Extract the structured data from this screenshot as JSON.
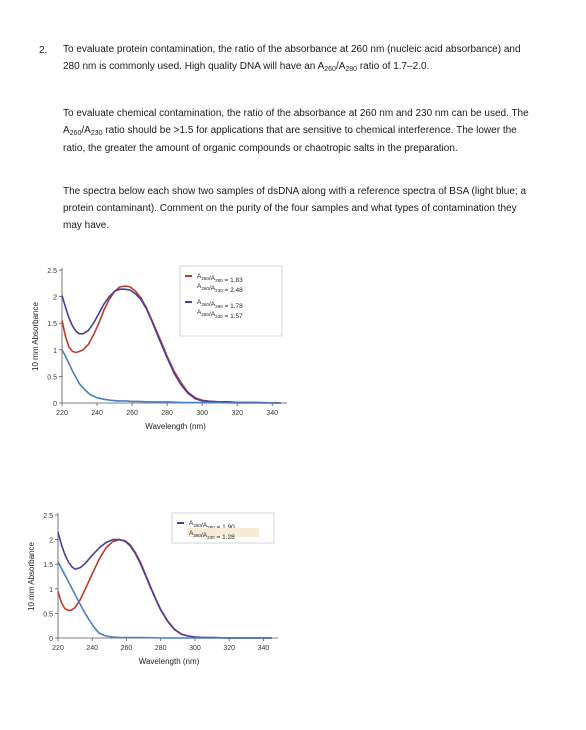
{
  "question": {
    "number": "2.",
    "para1": "To evaluate protein contamination, the ratio of the absorbance at 260 nm (nucleic acid absorbance) and 280 nm is commonly used. High quality DNA will have an A260/A280 ratio of 1.7–2.0.",
    "para2": "To evaluate chemical contamination, the ratio of the absorbance at 260 nm and 230 nm can be used. The A260/A230 ratio should be >1.5 for applications that are sensitive to chemical interference. The lower the ratio, the greater the amount of organic compounds or chaotropic salts in the preparation.",
    "para3": "The spectra below each show two samples of dsDNA along with a reference spectra of BSA (light blue; a protein contaminant). Comment on the purity of the four samples and what types of contamination they may have."
  },
  "colors": {
    "sample_red": "#c0392b",
    "sample_purple": "#4b3f9a",
    "bsa_blue": "#4a7fc1",
    "highlight": "#f6ecd5"
  },
  "chart_data": [
    {
      "type": "line",
      "xlabel": "Wavelength (nm)",
      "ylabel": "10 mm Absorbance",
      "xlim": [
        220,
        345
      ],
      "ylim": [
        0,
        2.5
      ],
      "xticks": [
        "220",
        "240",
        "260",
        "280",
        "300",
        "320",
        "340"
      ],
      "yticks": [
        "0",
        "0.5",
        "1",
        "1.5",
        "2",
        "2.5"
      ],
      "legend": [
        {
          "color": "#c0392b",
          "lines": [
            "A260/A280 = 1.83",
            "A260/A230 = 2.48"
          ]
        },
        {
          "color": "#4b3f9a",
          "lines": [
            "A260/A280 = 1.78",
            "A260/A230 = 1.57"
          ]
        }
      ],
      "series": [
        {
          "color": "#c0392b",
          "x": [
            220,
            222,
            224,
            226,
            228,
            230,
            232,
            235,
            238,
            241,
            244,
            247,
            250,
            253,
            256,
            259,
            262,
            265,
            268,
            271,
            274,
            277,
            280,
            284,
            288,
            292,
            296,
            300,
            305,
            310,
            315,
            320,
            330,
            345
          ],
          "y": [
            1.55,
            1.25,
            1.05,
            0.97,
            0.95,
            0.97,
            1.0,
            1.1,
            1.28,
            1.5,
            1.75,
            1.95,
            2.1,
            2.18,
            2.2,
            2.18,
            2.1,
            1.98,
            1.8,
            1.58,
            1.35,
            1.12,
            0.88,
            0.6,
            0.38,
            0.2,
            0.1,
            0.05,
            0.03,
            0.02,
            0.02,
            0.01,
            0.01,
            0.0
          ]
        },
        {
          "color": "#4b3f9a",
          "x": [
            220,
            222,
            224,
            226,
            228,
            230,
            232,
            235,
            238,
            241,
            244,
            247,
            250,
            253,
            256,
            259,
            262,
            265,
            268,
            271,
            274,
            277,
            280,
            284,
            288,
            292,
            296,
            300,
            305,
            310,
            315,
            320,
            330,
            345
          ],
          "y": [
            2.02,
            1.8,
            1.6,
            1.45,
            1.35,
            1.3,
            1.3,
            1.36,
            1.5,
            1.68,
            1.86,
            2.0,
            2.1,
            2.14,
            2.14,
            2.12,
            2.05,
            1.95,
            1.78,
            1.56,
            1.32,
            1.08,
            0.85,
            0.56,
            0.34,
            0.18,
            0.08,
            0.04,
            0.03,
            0.02,
            0.02,
            0.01,
            0.01,
            0.0
          ]
        },
        {
          "color": "#4a7fc1",
          "x": [
            220,
            222,
            224,
            226,
            228,
            230,
            233,
            236,
            240,
            244,
            248,
            252,
            256,
            260,
            264,
            270,
            280,
            290,
            300,
            320,
            345
          ],
          "y": [
            1.0,
            0.88,
            0.74,
            0.6,
            0.48,
            0.36,
            0.25,
            0.16,
            0.1,
            0.07,
            0.05,
            0.04,
            0.04,
            0.03,
            0.03,
            0.02,
            0.02,
            0.01,
            0.01,
            0.0,
            0.0
          ]
        }
      ]
    },
    {
      "type": "line",
      "xlabel": "Wavelength (nm)",
      "ylabel": "10 mm Absorbance",
      "xlim": [
        220,
        345
      ],
      "ylim": [
        0,
        2.5
      ],
      "xticks": [
        "220",
        "240",
        "260",
        "280",
        "300",
        "320",
        "340"
      ],
      "yticks": [
        "0",
        "0.5",
        "1",
        "1.5",
        "2",
        "2.5"
      ],
      "legend": [
        {
          "color": "#4b3f9a",
          "lines": [
            "A260/A280 = 1.90",
            "A260/A230 = 1.28"
          ]
        }
      ],
      "series": [
        {
          "color": "#c0392b",
          "x": [
            220,
            222,
            224,
            226,
            228,
            230,
            233,
            236,
            240,
            244,
            248,
            252,
            256,
            259,
            262,
            265,
            268,
            271,
            274,
            277,
            280,
            284,
            288,
            292,
            296,
            300,
            305,
            310,
            320,
            345
          ],
          "y": [
            0.95,
            0.72,
            0.6,
            0.56,
            0.57,
            0.62,
            0.78,
            1.0,
            1.3,
            1.6,
            1.83,
            1.96,
            2.0,
            1.98,
            1.9,
            1.75,
            1.55,
            1.3,
            1.05,
            0.8,
            0.58,
            0.35,
            0.18,
            0.08,
            0.04,
            0.02,
            0.01,
            0.01,
            0.0,
            0.0
          ]
        },
        {
          "color": "#4b3f9a",
          "x": [
            220,
            222,
            224,
            226,
            228,
            230,
            233,
            236,
            240,
            244,
            248,
            252,
            256,
            259,
            262,
            265,
            268,
            271,
            274,
            277,
            280,
            284,
            288,
            292,
            296,
            300,
            305,
            310,
            320,
            345
          ],
          "y": [
            2.15,
            1.9,
            1.7,
            1.55,
            1.45,
            1.4,
            1.43,
            1.52,
            1.68,
            1.83,
            1.94,
            2.0,
            2.0,
            1.97,
            1.88,
            1.73,
            1.52,
            1.28,
            1.03,
            0.79,
            0.57,
            0.34,
            0.17,
            0.08,
            0.04,
            0.02,
            0.01,
            0.01,
            0.0,
            0.0
          ]
        },
        {
          "color": "#4a7fc1",
          "x": [
            220,
            223,
            226,
            229,
            232,
            235,
            238,
            241,
            244,
            248,
            252,
            256,
            260,
            270,
            280,
            300,
            320,
            345
          ],
          "y": [
            1.55,
            1.35,
            1.15,
            0.95,
            0.75,
            0.55,
            0.38,
            0.22,
            0.1,
            0.04,
            0.02,
            0.01,
            0.01,
            0.01,
            0.0,
            0.0,
            0.0,
            0.0
          ]
        }
      ]
    }
  ]
}
